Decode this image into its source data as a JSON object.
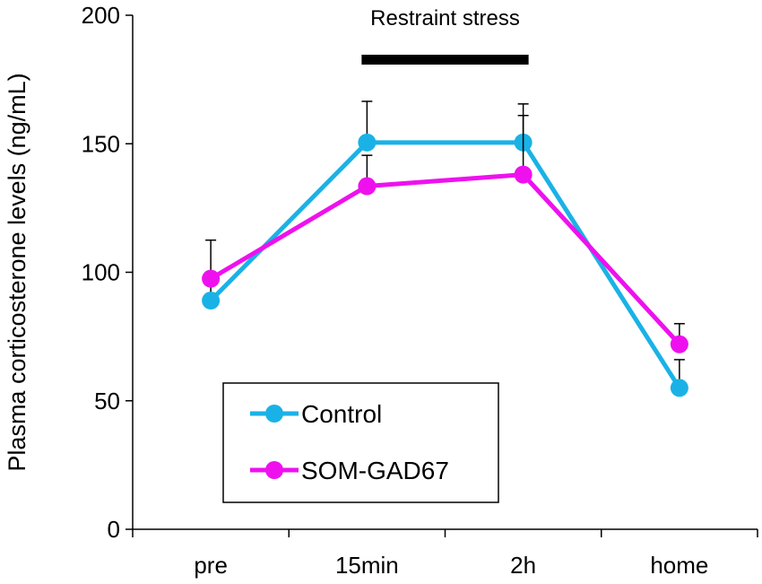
{
  "chart_data": {
    "type": "line",
    "title": "",
    "xlabel": "",
    "ylabel": "Plasma corticosterone levels (ng/mL)",
    "categories": [
      "pre",
      "15min",
      "2h",
      "home"
    ],
    "ylim": [
      0,
      200
    ],
    "yticks": [
      0,
      50,
      100,
      150,
      200
    ],
    "grid": false,
    "legend_position": "bottom-left",
    "series": [
      {
        "name": "Control",
        "color": "#1ab2e6",
        "values": [
          89,
          150.5,
          150.5,
          55
        ],
        "errors": [
          11,
          16,
          15,
          11
        ]
      },
      {
        "name": "SOM-GAD67",
        "color": "#ee11ee",
        "values": [
          97.5,
          133.5,
          138,
          72
        ],
        "errors": [
          15,
          12,
          23,
          8
        ]
      }
    ],
    "annotations": [
      {
        "text": "Restraint stress",
        "span": [
          "15min",
          "2h"
        ],
        "marker": "bar"
      }
    ]
  }
}
